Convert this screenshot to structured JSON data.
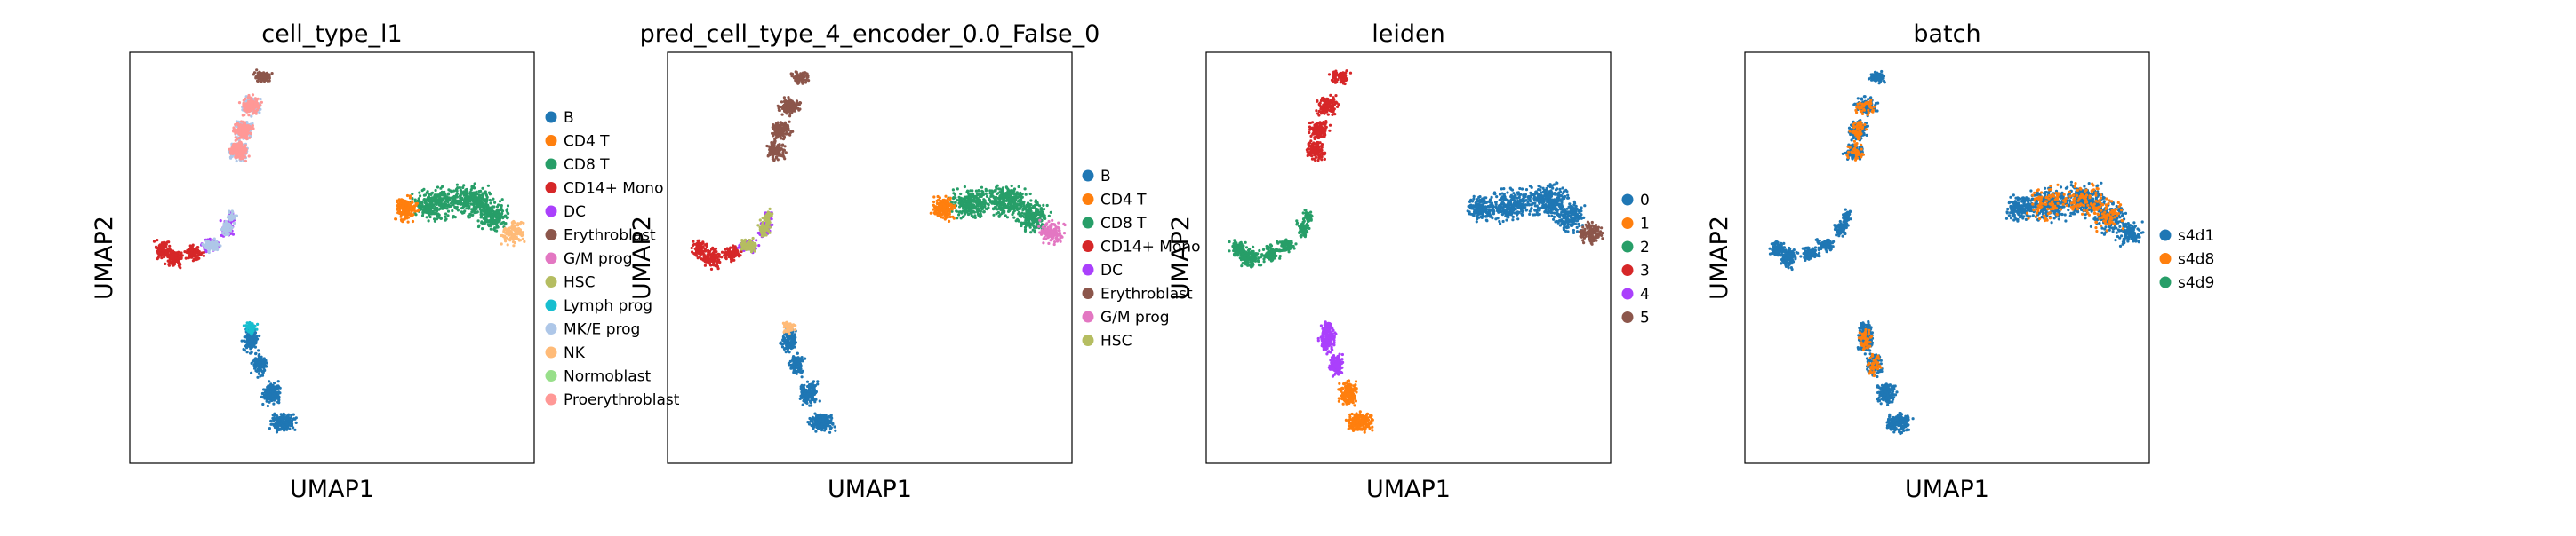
{
  "figure": {
    "panels": [
      {
        "title": "cell_type_l1",
        "xlabel": "UMAP1",
        "ylabel": "UMAP2"
      },
      {
        "title": "pred_cell_type_4_encoder_0.0_False_0",
        "xlabel": "UMAP1",
        "ylabel": "UMAP2"
      },
      {
        "title": "leiden",
        "xlabel": "UMAP1",
        "ylabel": "UMAP2"
      },
      {
        "title": "batch",
        "xlabel": "UMAP1",
        "ylabel": "UMAP2"
      }
    ]
  },
  "chart_data": [
    {
      "type": "scatter",
      "title": "cell_type_l1",
      "xlabel": "UMAP1",
      "ylabel": "UMAP2",
      "legend_placement": "right, outside plot",
      "grid": false,
      "legend": [
        {
          "name": "B",
          "color": "#1f77b4"
        },
        {
          "name": "CD4 T",
          "color": "#ff7f0e"
        },
        {
          "name": "CD8 T",
          "color": "#279e68"
        },
        {
          "name": "CD14+ Mono",
          "color": "#d62728"
        },
        {
          "name": "DC",
          "color": "#aa40fc"
        },
        {
          "name": "Erythroblast",
          "color": "#8c564b"
        },
        {
          "name": "G/M prog",
          "color": "#e377c2"
        },
        {
          "name": "HSC",
          "color": "#b5bd61"
        },
        {
          "name": "Lymph prog",
          "color": "#17becf"
        },
        {
          "name": "MK/E prog",
          "color": "#aec7e8"
        },
        {
          "name": "NK",
          "color": "#ffbb78"
        },
        {
          "name": "Normoblast",
          "color": "#98df8a"
        },
        {
          "name": "Proerythroblast",
          "color": "#ff9896"
        }
      ]
    },
    {
      "type": "scatter",
      "title": "pred_cell_type_4_encoder_0.0_False_0",
      "xlabel": "UMAP1",
      "ylabel": "UMAP2",
      "legend_placement": "right, outside plot",
      "grid": false,
      "legend": [
        {
          "name": "B",
          "color": "#1f77b4"
        },
        {
          "name": "CD4 T",
          "color": "#ff7f0e"
        },
        {
          "name": "CD8 T",
          "color": "#279e68"
        },
        {
          "name": "CD14+ Mono",
          "color": "#d62728"
        },
        {
          "name": "DC",
          "color": "#aa40fc"
        },
        {
          "name": "Erythroblast",
          "color": "#8c564b"
        },
        {
          "name": "G/M prog",
          "color": "#e377c2"
        },
        {
          "name": "HSC",
          "color": "#b5bd61"
        }
      ]
    },
    {
      "type": "scatter",
      "title": "leiden",
      "xlabel": "UMAP1",
      "ylabel": "UMAP2",
      "legend_placement": "right, outside plot",
      "grid": false,
      "legend": [
        {
          "name": "0",
          "color": "#1f77b4"
        },
        {
          "name": "1",
          "color": "#ff7f0e"
        },
        {
          "name": "2",
          "color": "#279e68"
        },
        {
          "name": "3",
          "color": "#d62728"
        },
        {
          "name": "4",
          "color": "#aa40fc"
        },
        {
          "name": "5",
          "color": "#8c564b"
        }
      ]
    },
    {
      "type": "scatter",
      "title": "batch",
      "xlabel": "UMAP1",
      "ylabel": "UMAP2",
      "legend_placement": "right, outside plot",
      "grid": false,
      "legend": [
        {
          "name": "s4d1",
          "color": "#1f77b4"
        },
        {
          "name": "s4d8",
          "color": "#ff7f0e"
        },
        {
          "name": "s4d9",
          "color": "#279e68"
        }
      ]
    }
  ]
}
